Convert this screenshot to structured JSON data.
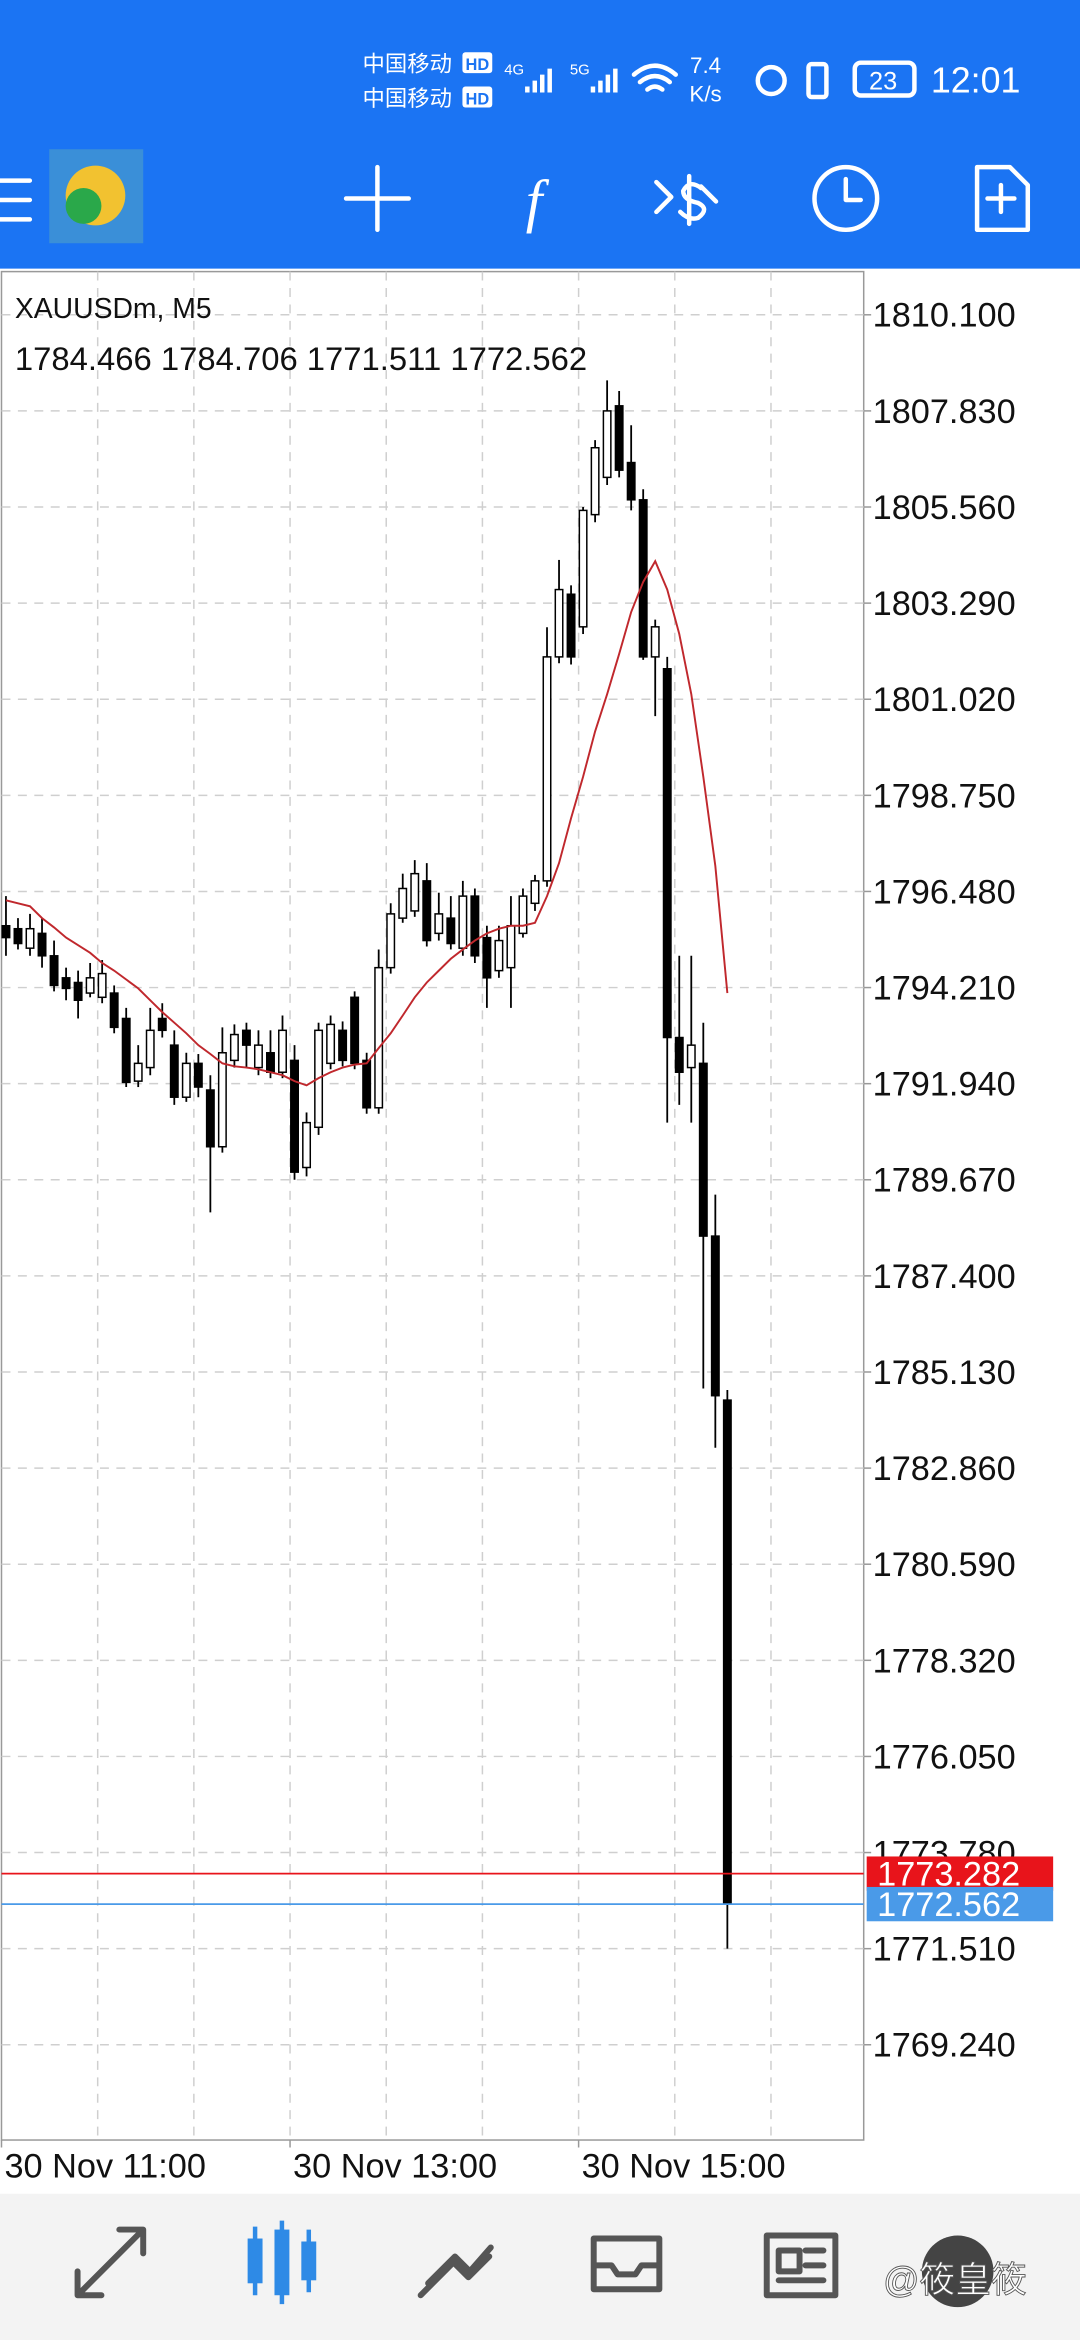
{
  "status_bar": {
    "carriers": [
      {
        "name": "中国移动",
        "badge": "HD"
      },
      {
        "name": "中国移动",
        "badge": "HD"
      }
    ],
    "networks": [
      "4G",
      "5G"
    ],
    "speed": "7.4",
    "speed_unit": "K/s",
    "battery": "23",
    "time": "12:01"
  },
  "toolbar": {
    "indicators_icon": "f"
  },
  "watermark": "@筱皇筱",
  "chart_data": {
    "type": "candlestick",
    "symbol": "XAUUSDm, M5",
    "ohlc": [
      1784.466,
      1784.706,
      1771.511,
      1772.562
    ],
    "categories": [
      "30 Nov 11:00",
      null,
      null,
      null,
      null,
      null,
      null,
      null,
      null,
      null,
      null,
      null,
      null,
      null,
      null,
      null,
      null,
      null,
      null,
      null,
      null,
      null,
      null,
      null,
      "30 Nov 13:00",
      null,
      null,
      null,
      null,
      null,
      null,
      null,
      null,
      null,
      null,
      null,
      null,
      null,
      null,
      null,
      null,
      null,
      null,
      null,
      null,
      null,
      null,
      null,
      "30 Nov 15:00",
      null,
      null,
      null,
      null,
      null,
      null,
      null,
      null,
      null,
      null,
      null,
      null
    ],
    "open": [
      1795.67,
      1795.6,
      1795.14,
      1795.49,
      1794.96,
      1794.44,
      1794.33,
      1794.08,
      1793.98,
      1794.08,
      1793.48,
      1792.0,
      1792.32,
      1793.48,
      1792.85,
      1791.62,
      1792.42,
      1791.79,
      1790.45,
      1792.49,
      1793.2,
      1792.32,
      1792.67,
      1792.21,
      1792.49,
      1789.96,
      1790.91,
      1792.42,
      1793.2,
      1793.98,
      1792.49,
      1791.37,
      1794.68,
      1795.85,
      1796.02,
      1796.73,
      1795.49,
      1795.85,
      1795.14,
      1796.37,
      1795.39,
      1794.61,
      1794.68,
      1795.49,
      1796.2,
      1796.73,
      1802.02,
      1803.5,
      1802.73,
      1805.38,
      1806.26,
      1807.95,
      1806.61,
      1805.73,
      1802.02,
      1801.74,
      1793.03,
      1792.32,
      1792.42,
      1788.34,
      1784.466
    ],
    "high": [
      1796.37,
      1795.85,
      1795.95,
      1795.85,
      1795.32,
      1794.68,
      1794.61,
      1794.79,
      1794.86,
      1794.26,
      1793.73,
      1792.85,
      1793.73,
      1793.84,
      1793.2,
      1792.67,
      1792.64,
      1792.14,
      1793.27,
      1793.34,
      1793.38,
      1793.2,
      1793.2,
      1793.55,
      1792.85,
      1791.26,
      1793.38,
      1793.55,
      1793.41,
      1794.12,
      1792.67,
      1795.11,
      1796.2,
      1796.9,
      1797.22,
      1797.15,
      1796.45,
      1796.37,
      1796.73,
      1796.55,
      1795.67,
      1795.67,
      1796.37,
      1796.55,
      1796.87,
      1802.72,
      1804.31,
      1803.71,
      1805.56,
      1807.14,
      1808.55,
      1808.3,
      1807.49,
      1805.98,
      1802.9,
      1802.02,
      1794.96,
      1794.96,
      1793.38,
      1789.32,
      1784.706
    ],
    "low": [
      1794.96,
      1795.11,
      1794.96,
      1794.68,
      1794.12,
      1793.91,
      1793.48,
      1793.98,
      1793.84,
      1793.13,
      1791.86,
      1791.86,
      1792.14,
      1793.03,
      1791.44,
      1791.51,
      1791.62,
      1788.9,
      1790.31,
      1792.32,
      1792.32,
      1792.14,
      1792.07,
      1792.07,
      1789.67,
      1789.75,
      1790.73,
      1792.28,
      1792.35,
      1792.28,
      1791.23,
      1791.23,
      1794.54,
      1795.74,
      1795.88,
      1795.18,
      1795.32,
      1795.11,
      1794.96,
      1794.79,
      1793.73,
      1794.44,
      1793.73,
      1795.39,
      1796.02,
      1796.59,
      1801.87,
      1801.84,
      1802.56,
      1805.2,
      1806.08,
      1806.26,
      1805.48,
      1801.95,
      1800.62,
      1791.02,
      1791.44,
      1791.02,
      1784.74,
      1783.34,
      1771.511
    ],
    "close": [
      1795.39,
      1795.25,
      1795.6,
      1794.96,
      1794.26,
      1794.19,
      1793.91,
      1794.44,
      1794.54,
      1793.27,
      1791.97,
      1792.42,
      1793.2,
      1793.2,
      1791.62,
      1792.42,
      1791.86,
      1790.45,
      1792.67,
      1793.1,
      1792.85,
      1792.85,
      1792.21,
      1793.2,
      1789.85,
      1791.02,
      1793.2,
      1793.34,
      1792.49,
      1792.42,
      1791.37,
      1794.68,
      1795.95,
      1796.55,
      1796.9,
      1795.32,
      1795.95,
      1795.25,
      1796.37,
      1794.96,
      1794.44,
      1795.32,
      1795.67,
      1796.37,
      1796.73,
      1802.02,
      1803.61,
      1802.02,
      1805.48,
      1806.96,
      1807.83,
      1806.43,
      1805.73,
      1802.02,
      1802.73,
      1793.03,
      1792.21,
      1792.85,
      1788.34,
      1784.57,
      1772.562
    ],
    "up_color": "#ffffff",
    "down_color": "#000000",
    "ma": {
      "color": "#c0282d",
      "values": [
        1796.27,
        1796.2,
        1796.13,
        1795.85,
        1795.63,
        1795.39,
        1795.21,
        1795.03,
        1794.79,
        1794.61,
        1794.4,
        1794.19,
        1793.91,
        1793.63,
        1793.38,
        1793.13,
        1792.85,
        1792.64,
        1792.42,
        1792.35,
        1792.32,
        1792.28,
        1792.21,
        1792.14,
        1792.0,
        1791.9,
        1792.07,
        1792.21,
        1792.32,
        1792.39,
        1792.42,
        1792.78,
        1793.13,
        1793.55,
        1793.98,
        1794.33,
        1794.61,
        1794.89,
        1795.11,
        1795.32,
        1795.49,
        1795.6,
        1795.67,
        1795.67,
        1795.74,
        1796.37,
        1797.15,
        1798.21,
        1799.19,
        1800.26,
        1801.14,
        1802.09,
        1803.08,
        1803.79,
        1804.28,
        1803.61,
        1802.56,
        1801.14,
        1799.19,
        1797.08,
        1794.08
      ]
    },
    "price_lines": [
      {
        "value": 1773.282,
        "color": "#e8141b"
      },
      {
        "value": 1772.562,
        "color": "#4a9ae8"
      }
    ],
    "ylim": [
      1766.99,
      1811.12
    ],
    "yticks": [
      {
        "value": 1810.1,
        "label": "1810.100"
      },
      {
        "value": 1807.83,
        "label": "1807.830"
      },
      {
        "value": 1805.56,
        "label": "1805.560"
      },
      {
        "value": 1803.29,
        "label": "1803.290"
      },
      {
        "value": 1801.02,
        "label": "1801.020"
      },
      {
        "value": 1798.75,
        "label": "1798.750"
      },
      {
        "value": 1796.48,
        "label": "1796.480"
      },
      {
        "value": 1794.21,
        "label": "1794.210"
      },
      {
        "value": 1791.94,
        "label": "1791.940"
      },
      {
        "value": 1789.67,
        "label": "1789.670"
      },
      {
        "value": 1787.4,
        "label": "1787.400"
      },
      {
        "value": 1785.13,
        "label": "1785.130"
      },
      {
        "value": 1782.86,
        "label": "1782.860"
      },
      {
        "value": 1780.59,
        "label": "1780.590"
      },
      {
        "value": 1778.32,
        "label": "1778.320"
      },
      {
        "value": 1776.05,
        "label": "1776.050"
      },
      {
        "value": 1773.78,
        "label": "1773.780"
      },
      {
        "value": 1771.51,
        "label": "1771.510"
      },
      {
        "value": 1769.24,
        "label": "1769.240"
      }
    ],
    "grid": true
  }
}
